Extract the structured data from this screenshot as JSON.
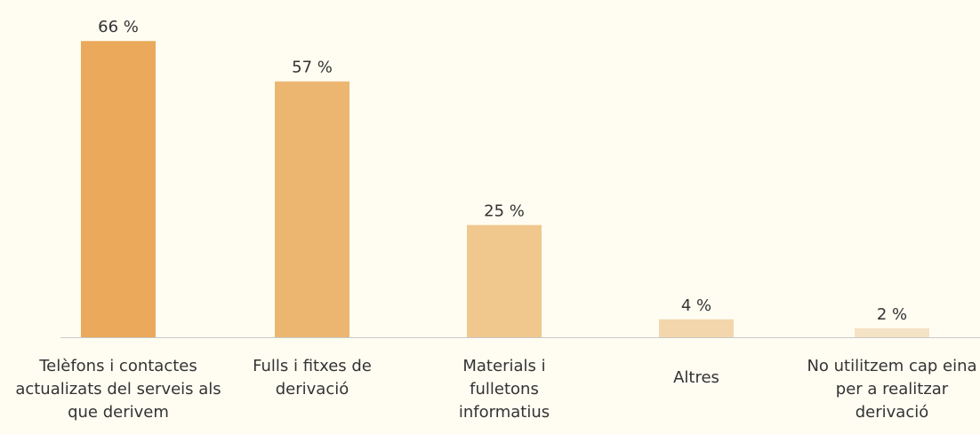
{
  "chart_data": {
    "type": "bar",
    "categories": [
      "Telèfons i contactes actualizats del serveis als que derivem",
      "Fulls i fitxes de derivació",
      "Materials i fulletons informatius",
      "Altres",
      "No utilitzem cap eina per a realitzar derivació"
    ],
    "values": [
      66,
      57,
      25,
      4,
      2
    ],
    "value_labels": [
      "66 %",
      "57 %",
      "25 %",
      "4 %",
      "2 %"
    ],
    "colors": [
      "#eaa95b",
      "#ecb671",
      "#f0c78d",
      "#f3d6ab",
      "#f6e2c5"
    ],
    "ylim": [
      0,
      70
    ]
  }
}
